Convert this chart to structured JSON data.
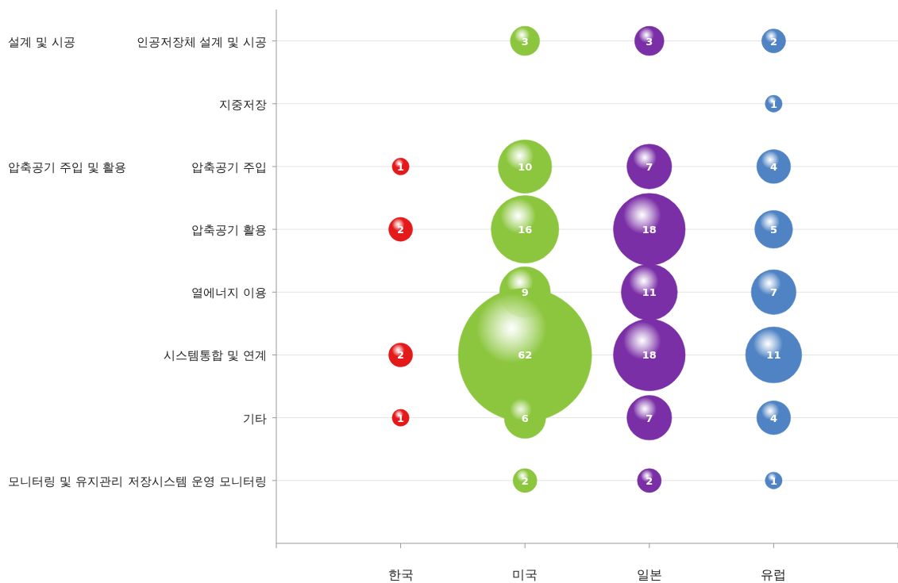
{
  "chart_data": {
    "type": "heatmap",
    "data_labels": true,
    "categories": [
      "한국",
      "미국",
      "일본",
      "유럽"
    ],
    "y_categories": [
      "인공저장체 설계 및 시공",
      "지중저장",
      "압축공기 주입",
      "압축공기 활용",
      "열에너지 이용",
      "시스템통합 및 연계",
      "기타",
      "저장시스템 운영 모니터링"
    ],
    "colors": [
      "#e41a1a",
      "#8cc63e",
      "#7a2fa6",
      "#4f83c4"
    ],
    "cells": [
      [
        null,
        3,
        3,
        2
      ],
      [
        null,
        null,
        null,
        1
      ],
      [
        1,
        10,
        7,
        4
      ],
      [
        2,
        16,
        18,
        5
      ],
      [
        null,
        9,
        11,
        7
      ],
      [
        2,
        62,
        18,
        11
      ],
      [
        1,
        6,
        7,
        4
      ],
      [
        null,
        2,
        2,
        1
      ]
    ],
    "grid": "y",
    "y2_categories": [
      "설계 및 시공",
      null,
      "압축공기 주입 및 활용",
      null,
      null,
      null,
      null,
      "모니터링 및 유지관리"
    ]
  }
}
